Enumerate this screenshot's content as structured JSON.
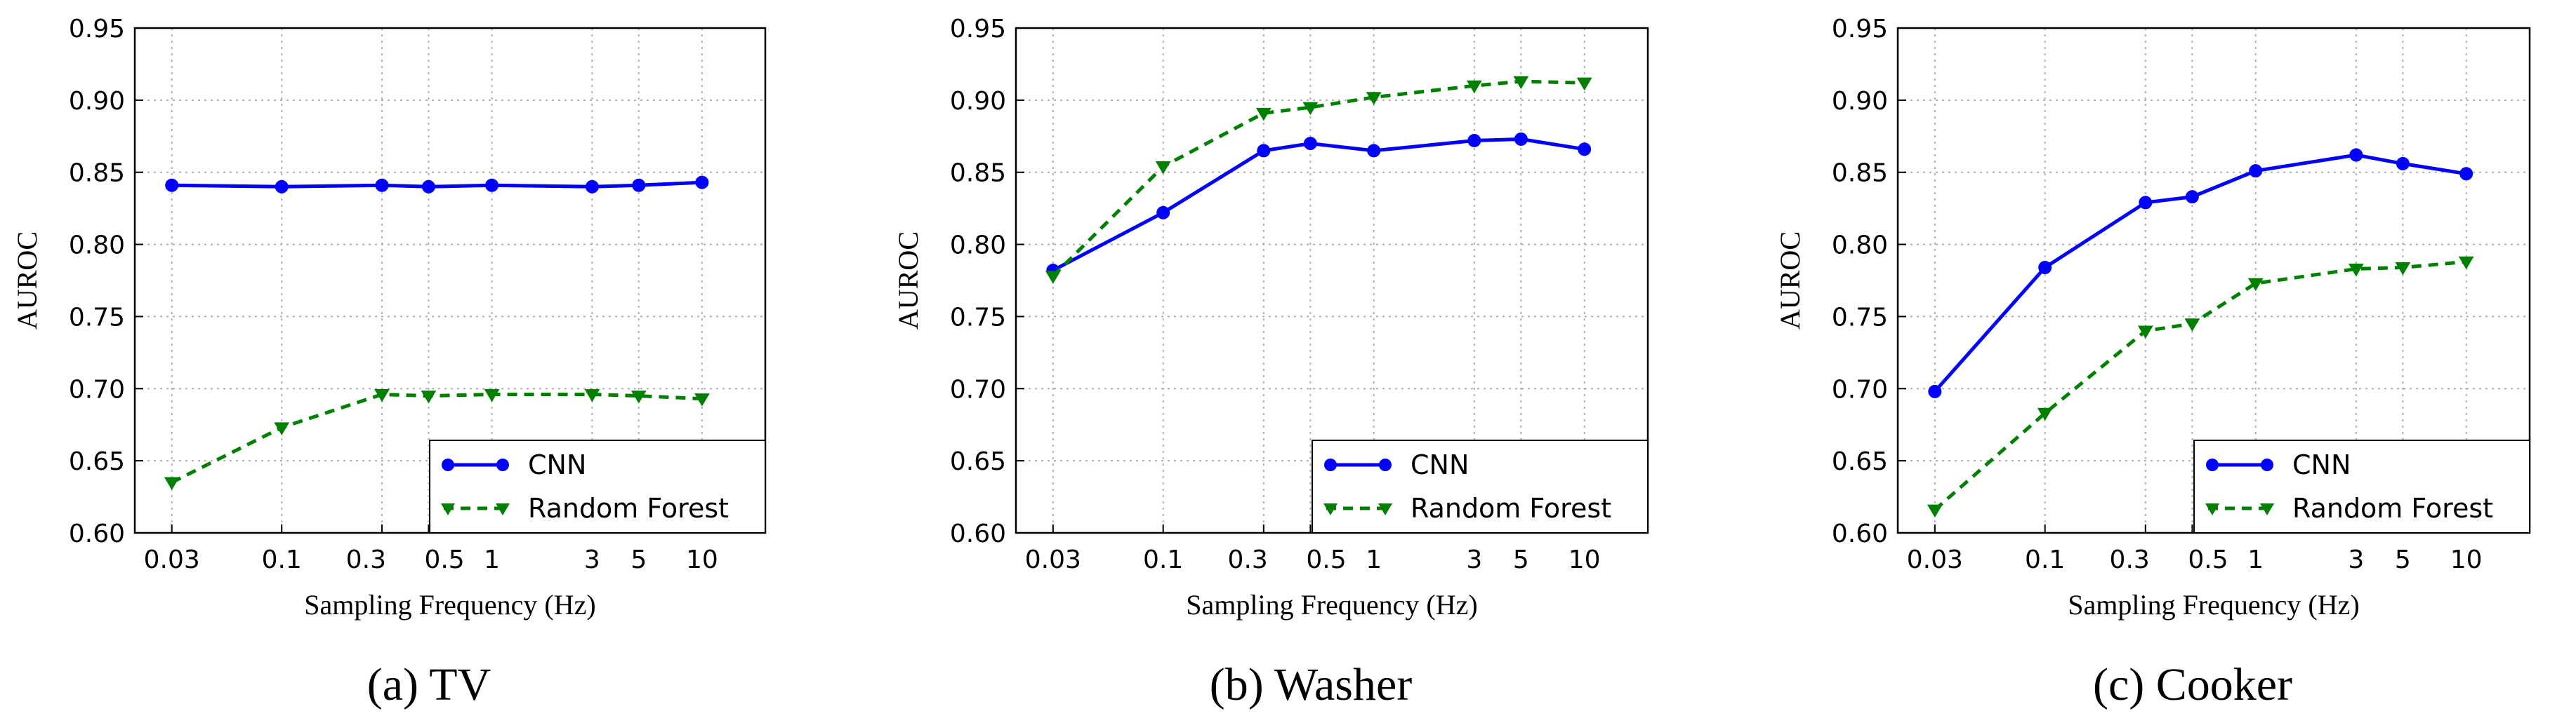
{
  "chart_data": [
    {
      "type": "line",
      "title": "",
      "caption": "(a) TV",
      "xlabel": "Sampling Frequency (Hz)",
      "ylabel": "AUROC",
      "x_scale": "log",
      "xlim": [
        0.02,
        20
      ],
      "ylim": [
        0.6,
        0.95
      ],
      "grid": true,
      "legend_position": "bottom-right",
      "x": [
        0.03,
        0.1,
        0.3,
        0.5,
        1,
        3,
        5,
        10
      ],
      "x_tick_labels": [
        "0.03",
        "0.1",
        "0.3",
        "0.5",
        "1",
        "3",
        "5",
        "10"
      ],
      "y_ticks": [
        0.6,
        0.65,
        0.7,
        0.75,
        0.8,
        0.85,
        0.9,
        0.95
      ],
      "y_tick_labels": [
        "0.60",
        "0.65",
        "0.70",
        "0.75",
        "0.80",
        "0.85",
        "0.90",
        "0.95"
      ],
      "series": [
        {
          "name": "CNN",
          "color": "#0000ff",
          "style": "solid",
          "marker": "circle",
          "values": [
            0.841,
            0.84,
            0.841,
            0.84,
            0.841,
            0.84,
            0.841,
            0.843
          ]
        },
        {
          "name": "Random Forest",
          "color": "#008000",
          "style": "dashed",
          "marker": "triangle-down",
          "values": [
            0.635,
            0.673,
            0.696,
            0.695,
            0.696,
            0.696,
            0.695,
            0.693
          ]
        }
      ]
    },
    {
      "type": "line",
      "title": "",
      "caption": "(b) Washer",
      "xlabel": "Sampling Frequency (Hz)",
      "ylabel": "AUROC",
      "x_scale": "log",
      "xlim": [
        0.02,
        20
      ],
      "ylim": [
        0.6,
        0.95
      ],
      "grid": true,
      "legend_position": "bottom-right",
      "x": [
        0.03,
        0.1,
        0.3,
        0.5,
        1,
        3,
        5,
        10
      ],
      "x_tick_labels": [
        "0.03",
        "0.1",
        "0.3",
        "0.5",
        "1",
        "3",
        "5",
        "10"
      ],
      "y_ticks": [
        0.6,
        0.65,
        0.7,
        0.75,
        0.8,
        0.85,
        0.9,
        0.95
      ],
      "y_tick_labels": [
        "0.60",
        "0.65",
        "0.70",
        "0.75",
        "0.80",
        "0.85",
        "0.90",
        "0.95"
      ],
      "series": [
        {
          "name": "CNN",
          "color": "#0000ff",
          "style": "solid",
          "marker": "circle",
          "values": [
            0.782,
            0.822,
            0.865,
            0.87,
            0.865,
            0.872,
            0.873,
            0.866
          ]
        },
        {
          "name": "Random Forest",
          "color": "#008000",
          "style": "dashed",
          "marker": "triangle-down",
          "values": [
            0.778,
            0.854,
            0.891,
            0.895,
            0.902,
            0.91,
            0.913,
            0.912
          ]
        }
      ]
    },
    {
      "type": "line",
      "title": "",
      "caption": "(c) Cooker",
      "xlabel": "Sampling Frequency (Hz)",
      "ylabel": "AUROC",
      "x_scale": "log",
      "xlim": [
        0.02,
        20
      ],
      "ylim": [
        0.6,
        0.95
      ],
      "grid": true,
      "legend_position": "bottom-right",
      "x": [
        0.03,
        0.1,
        0.3,
        0.5,
        1,
        3,
        5,
        10
      ],
      "x_tick_labels": [
        "0.03",
        "0.1",
        "0.3",
        "0.5",
        "1",
        "3",
        "5",
        "10"
      ],
      "y_ticks": [
        0.6,
        0.65,
        0.7,
        0.75,
        0.8,
        0.85,
        0.9,
        0.95
      ],
      "y_tick_labels": [
        "0.60",
        "0.65",
        "0.70",
        "0.75",
        "0.80",
        "0.85",
        "0.90",
        "0.95"
      ],
      "series": [
        {
          "name": "CNN",
          "color": "#0000ff",
          "style": "solid",
          "marker": "circle",
          "values": [
            0.698,
            0.784,
            0.829,
            0.833,
            0.851,
            0.862,
            0.856,
            0.849
          ]
        },
        {
          "name": "Random Forest",
          "color": "#008000",
          "style": "dashed",
          "marker": "triangle-down",
          "values": [
            0.616,
            0.683,
            0.74,
            0.745,
            0.773,
            0.783,
            0.784,
            0.788
          ]
        }
      ]
    }
  ]
}
